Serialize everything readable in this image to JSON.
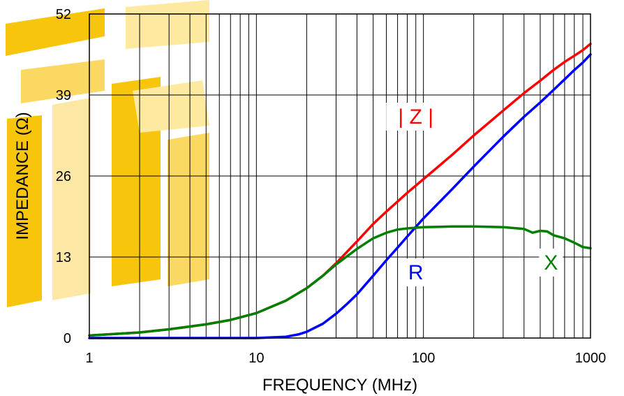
{
  "chart_data": {
    "type": "line",
    "title": "",
    "xlabel": "FREQUENCY (MHz)",
    "ylabel": "IMPEDANCE (Ω)",
    "xscale": "log",
    "xlim": [
      1,
      1000
    ],
    "ylim": [
      0,
      52
    ],
    "xticks": [
      "1",
      "10",
      "100",
      "1000"
    ],
    "yticks": [
      "0",
      "13",
      "26",
      "39",
      "52"
    ],
    "grid": true,
    "legend": "none",
    "watermark_colors": [
      "#f6c200",
      "#fde89a"
    ],
    "series": [
      {
        "name": "| Z |",
        "color": "#ff0000",
        "points": [
          [
            1,
            0.4
          ],
          [
            2,
            0.9
          ],
          [
            3,
            1.4
          ],
          [
            5,
            2.2
          ],
          [
            7,
            2.9
          ],
          [
            10,
            4.0
          ],
          [
            15,
            6.0
          ],
          [
            20,
            8.0
          ],
          [
            25,
            10.0
          ],
          [
            30,
            12.0
          ],
          [
            40,
            15.5
          ],
          [
            50,
            18.3
          ],
          [
            60,
            20.3
          ],
          [
            70,
            21.9
          ],
          [
            80,
            23.3
          ],
          [
            100,
            25.5
          ],
          [
            150,
            29.5
          ],
          [
            200,
            32.5
          ],
          [
            300,
            36.5
          ],
          [
            400,
            39.3
          ],
          [
            500,
            41.3
          ],
          [
            600,
            43.0
          ],
          [
            700,
            44.3
          ],
          [
            800,
            45.3
          ],
          [
            900,
            46.2
          ],
          [
            1000,
            47.2
          ]
        ]
      },
      {
        "name": "R",
        "color": "#0000ff",
        "points": [
          [
            1,
            0
          ],
          [
            10,
            0
          ],
          [
            15,
            0.2
          ],
          [
            18,
            0.6
          ],
          [
            20,
            1.0
          ],
          [
            25,
            2.3
          ],
          [
            30,
            3.9
          ],
          [
            35,
            5.5
          ],
          [
            40,
            7.0
          ],
          [
            50,
            10.0
          ],
          [
            60,
            12.5
          ],
          [
            70,
            14.5
          ],
          [
            80,
            16.3
          ],
          [
            100,
            19.2
          ],
          [
            150,
            24.0
          ],
          [
            200,
            27.5
          ],
          [
            300,
            32.3
          ],
          [
            400,
            35.5
          ],
          [
            500,
            37.8
          ],
          [
            600,
            39.8
          ],
          [
            700,
            41.5
          ],
          [
            800,
            43.0
          ],
          [
            900,
            44.2
          ],
          [
            1000,
            45.5
          ]
        ]
      },
      {
        "name": "X",
        "color": "#008000",
        "points": [
          [
            1,
            0.4
          ],
          [
            2,
            0.9
          ],
          [
            3,
            1.4
          ],
          [
            5,
            2.2
          ],
          [
            7,
            2.9
          ],
          [
            10,
            4.0
          ],
          [
            15,
            6.0
          ],
          [
            20,
            8.0
          ],
          [
            25,
            10.0
          ],
          [
            30,
            11.8
          ],
          [
            40,
            14.3
          ],
          [
            50,
            16.0
          ],
          [
            60,
            16.9
          ],
          [
            70,
            17.4
          ],
          [
            80,
            17.6
          ],
          [
            100,
            17.8
          ],
          [
            150,
            17.9
          ],
          [
            200,
            17.9
          ],
          [
            300,
            17.8
          ],
          [
            400,
            17.5
          ],
          [
            450,
            16.9
          ],
          [
            500,
            17.2
          ],
          [
            550,
            17.1
          ],
          [
            600,
            16.5
          ],
          [
            700,
            16.0
          ],
          [
            800,
            15.3
          ],
          [
            900,
            14.6
          ],
          [
            1000,
            14.4
          ]
        ]
      }
    ],
    "labels": [
      {
        "text": "| Z |",
        "color": "#ff0000",
        "x": 90,
        "y": 34.4
      },
      {
        "text": "R",
        "color": "#0000ff",
        "x": 90,
        "y": 9.4
      },
      {
        "text": "X",
        "color": "#008000",
        "x": 580,
        "y": 11.0
      }
    ]
  }
}
